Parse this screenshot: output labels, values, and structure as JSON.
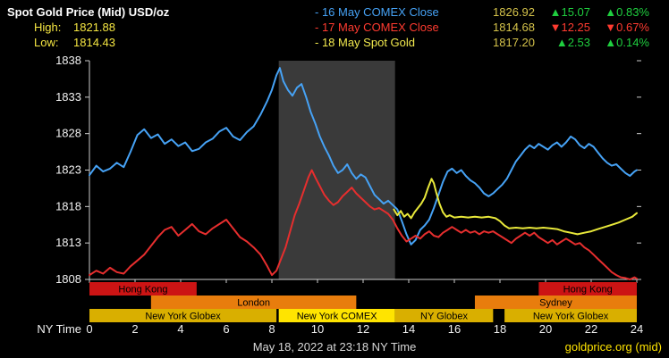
{
  "header": {
    "title": "Spot Gold Price (Mid) USD/oz",
    "high_label": "High:",
    "high_value": "1821.88",
    "low_label": "Low:",
    "low_value": "1814.43"
  },
  "legend": {
    "rows": [
      {
        "label": "- 16 May COMEX Close",
        "value": "1826.92",
        "change": "▲15.07",
        "pct": "▲0.83%",
        "series_color": "#46a2f5",
        "direction": "up"
      },
      {
        "label": "- 17 May COMEX Close",
        "value": "1814.68",
        "change": "▼12.25",
        "pct": "▼0.67%",
        "series_color": "#e62e2e",
        "direction": "down"
      },
      {
        "label": "- 18 May Spot Gold",
        "value": "1817.20",
        "change": "▲2.53",
        "pct": "▲0.14%",
        "series_color": "#e8e83a",
        "direction": "up"
      }
    ]
  },
  "footer": {
    "timestamp": "May 18, 2022 at 23:18 NY Time",
    "brand": "goldprice.org (mid)"
  },
  "colors": {
    "background": "#000000",
    "axis": "#cccccc",
    "tick_text": "#f0f0f0",
    "highlow_yellow": "#f5e642",
    "value_gold": "#d4c24a",
    "up_green": "#1fcf3f",
    "down_red": "#ff3b30"
  },
  "chart_data": {
    "type": "line",
    "title": "Spot Gold Price (Mid) USD/oz",
    "x_axis_label": "NY Time",
    "xlim": [
      0,
      24
    ],
    "ylim": [
      1808,
      1838
    ],
    "x_ticks": [
      0,
      2,
      4,
      6,
      8,
      10,
      12,
      14,
      16,
      18,
      20,
      22,
      24
    ],
    "y_ticks": [
      1838,
      1833,
      1828,
      1823,
      1818,
      1813,
      1808
    ],
    "grid": false,
    "legend_position": "top-right",
    "shaded_region": {
      "start": 8.3,
      "end": 13.4,
      "color": "#3a3a3a",
      "name": "New York COMEX session"
    },
    "sessions": [
      {
        "label": "Hong Kong",
        "row": 0,
        "start": 0,
        "end": 4.7,
        "color": "#cc1414",
        "text_color": "#000000"
      },
      {
        "label": "Hong Kong",
        "row": 0,
        "start": 19.7,
        "end": 24,
        "color": "#cc1414",
        "text_color": "#000000"
      },
      {
        "label": "London",
        "row": 1,
        "start": 2.7,
        "end": 11.7,
        "color": "#e87d0d",
        "text_color": "#000000"
      },
      {
        "label": "Sydney",
        "row": 1,
        "start": 16.9,
        "end": 24,
        "color": "#e87d0d",
        "text_color": "#000000"
      },
      {
        "label": "New York Globex",
        "row": 2,
        "start": 0,
        "end": 8.2,
        "color": "#d9af00",
        "text_color": "#000000"
      },
      {
        "label": "New York COMEX",
        "row": 2,
        "start": 8.3,
        "end": 13.4,
        "color": "#ffe400",
        "text_color": "#000000"
      },
      {
        "label": "NY Globex",
        "row": 2,
        "start": 13.4,
        "end": 17.7,
        "color": "#d9af00",
        "text_color": "#000000"
      },
      {
        "label": "New York Globex",
        "row": 2,
        "start": 18.2,
        "end": 24,
        "color": "#d9af00",
        "text_color": "#000000"
      }
    ],
    "series": [
      {
        "name": "16 May COMEX Close",
        "color": "#46a2f5",
        "points": [
          [
            0,
            1822.3
          ],
          [
            0.3,
            1823.6
          ],
          [
            0.6,
            1822.8
          ],
          [
            0.9,
            1823.2
          ],
          [
            1.2,
            1824.0
          ],
          [
            1.5,
            1823.4
          ],
          [
            1.8,
            1825.5
          ],
          [
            2.1,
            1827.8
          ],
          [
            2.4,
            1828.6
          ],
          [
            2.7,
            1827.4
          ],
          [
            3.0,
            1827.9
          ],
          [
            3.3,
            1826.6
          ],
          [
            3.6,
            1827.2
          ],
          [
            3.9,
            1826.3
          ],
          [
            4.2,
            1826.8
          ],
          [
            4.5,
            1825.6
          ],
          [
            4.8,
            1825.9
          ],
          [
            5.1,
            1826.8
          ],
          [
            5.4,
            1827.3
          ],
          [
            5.7,
            1828.3
          ],
          [
            6.0,
            1828.8
          ],
          [
            6.3,
            1827.6
          ],
          [
            6.6,
            1827.1
          ],
          [
            6.9,
            1828.2
          ],
          [
            7.2,
            1829.0
          ],
          [
            7.5,
            1830.6
          ],
          [
            7.8,
            1832.5
          ],
          [
            8.0,
            1834.0
          ],
          [
            8.2,
            1836.0
          ],
          [
            8.35,
            1837.0
          ],
          [
            8.5,
            1835.2
          ],
          [
            8.7,
            1834.0
          ],
          [
            8.9,
            1833.2
          ],
          [
            9.1,
            1834.3
          ],
          [
            9.3,
            1834.8
          ],
          [
            9.5,
            1833.0
          ],
          [
            9.7,
            1831.0
          ],
          [
            9.9,
            1829.4
          ],
          [
            10.1,
            1827.6
          ],
          [
            10.3,
            1826.2
          ],
          [
            10.5,
            1825.0
          ],
          [
            10.7,
            1823.6
          ],
          [
            10.9,
            1822.6
          ],
          [
            11.1,
            1823.0
          ],
          [
            11.3,
            1823.8
          ],
          [
            11.5,
            1822.6
          ],
          [
            11.7,
            1821.8
          ],
          [
            11.9,
            1822.4
          ],
          [
            12.1,
            1822.0
          ],
          [
            12.3,
            1820.8
          ],
          [
            12.5,
            1819.6
          ],
          [
            12.7,
            1819.0
          ],
          [
            12.9,
            1818.4
          ],
          [
            13.1,
            1818.8
          ],
          [
            13.3,
            1818.2
          ],
          [
            13.5,
            1817.6
          ],
          [
            13.7,
            1816.0
          ],
          [
            13.9,
            1814.2
          ],
          [
            14.1,
            1812.8
          ],
          [
            14.3,
            1813.4
          ],
          [
            14.5,
            1814.8
          ],
          [
            14.7,
            1815.4
          ],
          [
            14.9,
            1816.2
          ],
          [
            15.1,
            1817.8
          ],
          [
            15.3,
            1819.6
          ],
          [
            15.5,
            1821.4
          ],
          [
            15.7,
            1822.8
          ],
          [
            15.9,
            1823.2
          ],
          [
            16.1,
            1822.6
          ],
          [
            16.3,
            1823.0
          ],
          [
            16.5,
            1822.2
          ],
          [
            16.7,
            1821.6
          ],
          [
            16.9,
            1821.2
          ],
          [
            17.1,
            1820.6
          ],
          [
            17.3,
            1819.8
          ],
          [
            17.5,
            1819.4
          ],
          [
            17.7,
            1819.8
          ],
          [
            17.9,
            1820.4
          ],
          [
            18.1,
            1821.0
          ],
          [
            18.3,
            1821.8
          ],
          [
            18.5,
            1823.0
          ],
          [
            18.7,
            1824.2
          ],
          [
            18.9,
            1825.0
          ],
          [
            19.1,
            1825.8
          ],
          [
            19.3,
            1826.4
          ],
          [
            19.5,
            1826.0
          ],
          [
            19.7,
            1826.6
          ],
          [
            19.9,
            1826.2
          ],
          [
            20.1,
            1825.8
          ],
          [
            20.3,
            1826.4
          ],
          [
            20.5,
            1826.8
          ],
          [
            20.7,
            1826.2
          ],
          [
            20.9,
            1826.8
          ],
          [
            21.1,
            1827.6
          ],
          [
            21.3,
            1827.2
          ],
          [
            21.5,
            1826.4
          ],
          [
            21.7,
            1826.0
          ],
          [
            21.9,
            1826.6
          ],
          [
            22.1,
            1826.2
          ],
          [
            22.3,
            1825.4
          ],
          [
            22.5,
            1824.6
          ],
          [
            22.7,
            1824.0
          ],
          [
            22.9,
            1823.6
          ],
          [
            23.1,
            1823.8
          ],
          [
            23.3,
            1823.2
          ],
          [
            23.5,
            1822.6
          ],
          [
            23.7,
            1822.2
          ],
          [
            23.9,
            1822.8
          ],
          [
            24,
            1823.0
          ]
        ]
      },
      {
        "name": "17 May COMEX Close",
        "color": "#e62e2e",
        "points": [
          [
            0,
            1808.6
          ],
          [
            0.3,
            1809.2
          ],
          [
            0.6,
            1808.8
          ],
          [
            0.9,
            1809.6
          ],
          [
            1.2,
            1809.0
          ],
          [
            1.5,
            1808.8
          ],
          [
            1.8,
            1809.8
          ],
          [
            2.1,
            1810.6
          ],
          [
            2.4,
            1811.4
          ],
          [
            2.7,
            1812.6
          ],
          [
            3.0,
            1813.8
          ],
          [
            3.3,
            1814.8
          ],
          [
            3.6,
            1815.2
          ],
          [
            3.9,
            1814.0
          ],
          [
            4.2,
            1814.8
          ],
          [
            4.5,
            1815.6
          ],
          [
            4.8,
            1814.6
          ],
          [
            5.1,
            1814.2
          ],
          [
            5.4,
            1815.0
          ],
          [
            5.7,
            1815.6
          ],
          [
            6.0,
            1816.2
          ],
          [
            6.3,
            1815.0
          ],
          [
            6.6,
            1813.8
          ],
          [
            6.9,
            1813.2
          ],
          [
            7.2,
            1812.4
          ],
          [
            7.5,
            1811.4
          ],
          [
            7.8,
            1809.8
          ],
          [
            8.0,
            1808.6
          ],
          [
            8.2,
            1809.2
          ],
          [
            8.4,
            1810.8
          ],
          [
            8.6,
            1812.4
          ],
          [
            8.8,
            1814.6
          ],
          [
            9.0,
            1816.8
          ],
          [
            9.2,
            1818.4
          ],
          [
            9.4,
            1820.2
          ],
          [
            9.6,
            1822.0
          ],
          [
            9.75,
            1823.0
          ],
          [
            9.9,
            1822.0
          ],
          [
            10.1,
            1820.8
          ],
          [
            10.3,
            1819.6
          ],
          [
            10.5,
            1818.8
          ],
          [
            10.7,
            1818.2
          ],
          [
            10.9,
            1818.6
          ],
          [
            11.1,
            1819.4
          ],
          [
            11.3,
            1820.0
          ],
          [
            11.5,
            1820.6
          ],
          [
            11.7,
            1819.8
          ],
          [
            11.9,
            1819.2
          ],
          [
            12.1,
            1818.6
          ],
          [
            12.3,
            1818.0
          ],
          [
            12.5,
            1817.6
          ],
          [
            12.7,
            1817.8
          ],
          [
            12.9,
            1817.4
          ],
          [
            13.1,
            1817.0
          ],
          [
            13.3,
            1816.2
          ],
          [
            13.5,
            1815.0
          ],
          [
            13.7,
            1814.0
          ],
          [
            13.9,
            1813.2
          ],
          [
            14.1,
            1813.6
          ],
          [
            14.3,
            1814.0
          ],
          [
            14.5,
            1813.6
          ],
          [
            14.7,
            1814.2
          ],
          [
            14.9,
            1814.6
          ],
          [
            15.1,
            1814.0
          ],
          [
            15.3,
            1813.8
          ],
          [
            15.5,
            1814.4
          ],
          [
            15.7,
            1814.8
          ],
          [
            15.9,
            1815.2
          ],
          [
            16.1,
            1814.8
          ],
          [
            16.3,
            1814.4
          ],
          [
            16.5,
            1814.8
          ],
          [
            16.7,
            1814.4
          ],
          [
            16.9,
            1814.6
          ],
          [
            17.1,
            1814.2
          ],
          [
            17.3,
            1814.6
          ],
          [
            17.5,
            1814.4
          ],
          [
            17.7,
            1814.6
          ],
          [
            17.9,
            1814.2
          ],
          [
            18.1,
            1813.8
          ],
          [
            18.3,
            1813.4
          ],
          [
            18.5,
            1813.0
          ],
          [
            18.7,
            1813.6
          ],
          [
            18.9,
            1814.0
          ],
          [
            19.1,
            1814.4
          ],
          [
            19.3,
            1814.0
          ],
          [
            19.5,
            1814.4
          ],
          [
            19.7,
            1813.8
          ],
          [
            19.9,
            1813.4
          ],
          [
            20.1,
            1813.0
          ],
          [
            20.3,
            1813.4
          ],
          [
            20.5,
            1812.8
          ],
          [
            20.7,
            1813.2
          ],
          [
            20.9,
            1813.6
          ],
          [
            21.1,
            1813.2
          ],
          [
            21.3,
            1812.8
          ],
          [
            21.5,
            1813.0
          ],
          [
            21.7,
            1812.4
          ],
          [
            21.9,
            1812.0
          ],
          [
            22.1,
            1811.4
          ],
          [
            22.3,
            1810.8
          ],
          [
            22.5,
            1810.2
          ],
          [
            22.7,
            1809.6
          ],
          [
            22.9,
            1809.0
          ],
          [
            23.1,
            1808.6
          ],
          [
            23.3,
            1808.3
          ],
          [
            23.5,
            1808.2
          ],
          [
            23.7,
            1808.0
          ],
          [
            23.9,
            1808.3
          ],
          [
            24,
            1808.1
          ]
        ]
      },
      {
        "name": "18 May Spot Gold",
        "color": "#e8e83a",
        "points": [
          [
            13.35,
            1817.6
          ],
          [
            13.5,
            1816.8
          ],
          [
            13.65,
            1817.4
          ],
          [
            13.8,
            1816.6
          ],
          [
            13.95,
            1817.0
          ],
          [
            14.1,
            1816.4
          ],
          [
            14.25,
            1817.2
          ],
          [
            14.4,
            1817.8
          ],
          [
            14.55,
            1818.4
          ],
          [
            14.7,
            1819.2
          ],
          [
            14.85,
            1820.6
          ],
          [
            15.0,
            1821.8
          ],
          [
            15.1,
            1821.2
          ],
          [
            15.2,
            1820.0
          ],
          [
            15.35,
            1818.4
          ],
          [
            15.5,
            1817.2
          ],
          [
            15.65,
            1816.6
          ],
          [
            15.8,
            1816.8
          ],
          [
            16.0,
            1816.5
          ],
          [
            16.3,
            1816.6
          ],
          [
            16.6,
            1816.5
          ],
          [
            16.9,
            1816.6
          ],
          [
            17.2,
            1816.5
          ],
          [
            17.5,
            1816.6
          ],
          [
            17.8,
            1816.4
          ],
          [
            18.0,
            1816.0
          ],
          [
            18.2,
            1815.4
          ],
          [
            18.4,
            1815.0
          ],
          [
            18.7,
            1815.1
          ],
          [
            19.0,
            1815.0
          ],
          [
            19.3,
            1815.1
          ],
          [
            19.6,
            1815.0
          ],
          [
            19.9,
            1815.1
          ],
          [
            20.2,
            1815.0
          ],
          [
            20.5,
            1814.9
          ],
          [
            20.8,
            1814.6
          ],
          [
            21.1,
            1814.4
          ],
          [
            21.4,
            1814.2
          ],
          [
            21.7,
            1814.4
          ],
          [
            22.0,
            1814.6
          ],
          [
            22.3,
            1814.9
          ],
          [
            22.6,
            1815.2
          ],
          [
            22.9,
            1815.5
          ],
          [
            23.2,
            1815.8
          ],
          [
            23.5,
            1816.2
          ],
          [
            23.8,
            1816.6
          ],
          [
            24,
            1817.1
          ]
        ]
      }
    ]
  }
}
